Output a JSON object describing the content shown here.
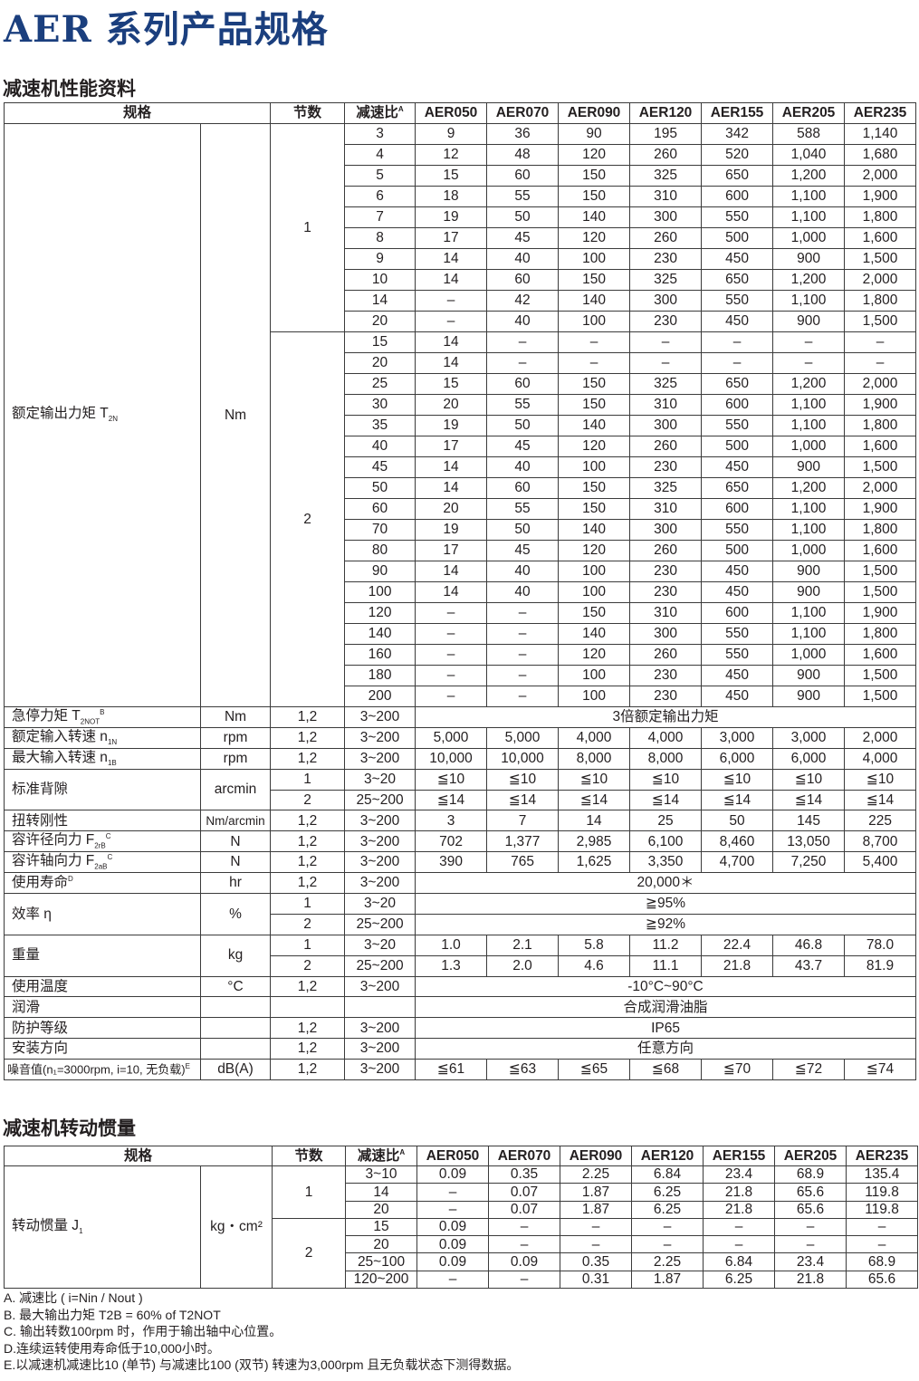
{
  "title": "AER 系列产品规格",
  "perf": {
    "section_title": "减速机性能资料",
    "header": {
      "spec": "规格",
      "stage": "节数",
      "ratio": "减速比",
      "ratio_sup": "A",
      "models": [
        "AER050",
        "AER070",
        "AER090",
        "AER120",
        "AER155",
        "AER205",
        "AER235"
      ]
    },
    "groups": [
      {
        "label": "额定输出力矩 T",
        "sub": "2N",
        "sup": "",
        "unit": "Nm",
        "stages": [
          {
            "stage": "1",
            "rows": [
              {
                "ratio": "3",
                "values": [
                  "9",
                  "36",
                  "90",
                  "195",
                  "342",
                  "588",
                  "1,140"
                ]
              },
              {
                "ratio": "4",
                "values": [
                  "12",
                  "48",
                  "120",
                  "260",
                  "520",
                  "1,040",
                  "1,680"
                ]
              },
              {
                "ratio": "5",
                "values": [
                  "15",
                  "60",
                  "150",
                  "325",
                  "650",
                  "1,200",
                  "2,000"
                ]
              },
              {
                "ratio": "6",
                "values": [
                  "18",
                  "55",
                  "150",
                  "310",
                  "600",
                  "1,100",
                  "1,900"
                ]
              },
              {
                "ratio": "7",
                "values": [
                  "19",
                  "50",
                  "140",
                  "300",
                  "550",
                  "1,100",
                  "1,800"
                ]
              },
              {
                "ratio": "8",
                "values": [
                  "17",
                  "45",
                  "120",
                  "260",
                  "500",
                  "1,000",
                  "1,600"
                ]
              },
              {
                "ratio": "9",
                "values": [
                  "14",
                  "40",
                  "100",
                  "230",
                  "450",
                  "900",
                  "1,500"
                ]
              },
              {
                "ratio": "10",
                "values": [
                  "14",
                  "60",
                  "150",
                  "325",
                  "650",
                  "1,200",
                  "2,000"
                ]
              },
              {
                "ratio": "14",
                "values": [
                  "–",
                  "42",
                  "140",
                  "300",
                  "550",
                  "1,100",
                  "1,800"
                ]
              },
              {
                "ratio": "20",
                "values": [
                  "–",
                  "40",
                  "100",
                  "230",
                  "450",
                  "900",
                  "1,500"
                ]
              }
            ]
          },
          {
            "stage": "2",
            "rows": [
              {
                "ratio": "15",
                "values": [
                  "14",
                  "–",
                  "–",
                  "–",
                  "–",
                  "–",
                  "–"
                ]
              },
              {
                "ratio": "20",
                "values": [
                  "14",
                  "–",
                  "–",
                  "–",
                  "–",
                  "–",
                  "–"
                ]
              },
              {
                "ratio": "25",
                "values": [
                  "15",
                  "60",
                  "150",
                  "325",
                  "650",
                  "1,200",
                  "2,000"
                ]
              },
              {
                "ratio": "30",
                "values": [
                  "20",
                  "55",
                  "150",
                  "310",
                  "600",
                  "1,100",
                  "1,900"
                ]
              },
              {
                "ratio": "35",
                "values": [
                  "19",
                  "50",
                  "140",
                  "300",
                  "550",
                  "1,100",
                  "1,800"
                ]
              },
              {
                "ratio": "40",
                "values": [
                  "17",
                  "45",
                  "120",
                  "260",
                  "500",
                  "1,000",
                  "1,600"
                ]
              },
              {
                "ratio": "45",
                "values": [
                  "14",
                  "40",
                  "100",
                  "230",
                  "450",
                  "900",
                  "1,500"
                ]
              },
              {
                "ratio": "50",
                "values": [
                  "14",
                  "60",
                  "150",
                  "325",
                  "650",
                  "1,200",
                  "2,000"
                ]
              },
              {
                "ratio": "60",
                "values": [
                  "20",
                  "55",
                  "150",
                  "310",
                  "600",
                  "1,100",
                  "1,900"
                ]
              },
              {
                "ratio": "70",
                "values": [
                  "19",
                  "50",
                  "140",
                  "300",
                  "550",
                  "1,100",
                  "1,800"
                ]
              },
              {
                "ratio": "80",
                "values": [
                  "17",
                  "45",
                  "120",
                  "260",
                  "500",
                  "1,000",
                  "1,600"
                ]
              },
              {
                "ratio": "90",
                "values": [
                  "14",
                  "40",
                  "100",
                  "230",
                  "450",
                  "900",
                  "1,500"
                ]
              },
              {
                "ratio": "100",
                "values": [
                  "14",
                  "40",
                  "100",
                  "230",
                  "450",
                  "900",
                  "1,500"
                ]
              },
              {
                "ratio": "120",
                "values": [
                  "–",
                  "–",
                  "150",
                  "310",
                  "600",
                  "1,100",
                  "1,900"
                ]
              },
              {
                "ratio": "140",
                "values": [
                  "–",
                  "–",
                  "140",
                  "300",
                  "550",
                  "1,100",
                  "1,800"
                ]
              },
              {
                "ratio": "160",
                "values": [
                  "–",
                  "–",
                  "120",
                  "260",
                  "550",
                  "1,000",
                  "1,600"
                ]
              },
              {
                "ratio": "180",
                "values": [
                  "–",
                  "–",
                  "100",
                  "230",
                  "450",
                  "900",
                  "1,500"
                ]
              },
              {
                "ratio": "200",
                "values": [
                  "–",
                  "–",
                  "100",
                  "230",
                  "450",
                  "900",
                  "1,500"
                ]
              }
            ]
          }
        ]
      },
      {
        "label": "急停力矩 T",
        "sub": "2NOT",
        "sup": "B",
        "unit": "Nm",
        "stages": [
          {
            "stage": "1,2",
            "rows": [
              {
                "ratio": "3~200",
                "merged": "3倍额定输出力矩"
              }
            ]
          }
        ]
      },
      {
        "label": "额定输入转速 n",
        "sub": "1N",
        "sup": "",
        "unit": "rpm",
        "stages": [
          {
            "stage": "1,2",
            "rows": [
              {
                "ratio": "3~200",
                "values": [
                  "5,000",
                  "5,000",
                  "4,000",
                  "4,000",
                  "3,000",
                  "3,000",
                  "2,000"
                ]
              }
            ]
          }
        ]
      },
      {
        "label": "最大输入转速 n",
        "sub": "1B",
        "sup": "",
        "unit": "rpm",
        "stages": [
          {
            "stage": "1,2",
            "rows": [
              {
                "ratio": "3~200",
                "values": [
                  "10,000",
                  "10,000",
                  "8,000",
                  "8,000",
                  "6,000",
                  "6,000",
                  "4,000"
                ]
              }
            ]
          }
        ]
      },
      {
        "label": "标准背隙",
        "sub": "",
        "sup": "",
        "unit": "arcmin",
        "stages": [
          {
            "stage": "1",
            "rows": [
              {
                "ratio": "3~20",
                "values": [
                  "≦10",
                  "≦10",
                  "≦10",
                  "≦10",
                  "≦10",
                  "≦10",
                  "≦10"
                ]
              }
            ]
          },
          {
            "stage": "2",
            "rows": [
              {
                "ratio": "25~200",
                "values": [
                  "≦14",
                  "≦14",
                  "≦14",
                  "≦14",
                  "≦14",
                  "≦14",
                  "≦14"
                ]
              }
            ]
          }
        ]
      },
      {
        "label": "扭转刚性",
        "sub": "",
        "sup": "",
        "unit": "Nm/arcmin",
        "stages": [
          {
            "stage": "1,2",
            "rows": [
              {
                "ratio": "3~200",
                "values": [
                  "3",
                  "7",
                  "14",
                  "25",
                  "50",
                  "145",
                  "225"
                ]
              }
            ]
          }
        ]
      },
      {
        "label": "容许径向力 F",
        "sub": "2rB",
        "sup": "C",
        "unit": "N",
        "stages": [
          {
            "stage": "1,2",
            "rows": [
              {
                "ratio": "3~200",
                "values": [
                  "702",
                  "1,377",
                  "2,985",
                  "6,100",
                  "8,460",
                  "13,050",
                  "8,700"
                ]
              }
            ]
          }
        ]
      },
      {
        "label": "容许轴向力 F",
        "sub": "2aB",
        "sup": "C",
        "unit": "N",
        "stages": [
          {
            "stage": "1,2",
            "rows": [
              {
                "ratio": "3~200",
                "values": [
                  "390",
                  "765",
                  "1,625",
                  "3,350",
                  "4,700",
                  "7,250",
                  "5,400"
                ]
              }
            ]
          }
        ]
      },
      {
        "label": "使用寿命",
        "sub": "",
        "sup": "D",
        "unit": "hr",
        "stages": [
          {
            "stage": "1,2",
            "rows": [
              {
                "ratio": "3~200",
                "merged": "20,000＊"
              }
            ]
          }
        ]
      },
      {
        "label": "效率 η",
        "sub": "",
        "sup": "",
        "unit": "%",
        "stages": [
          {
            "stage": "1",
            "rows": [
              {
                "ratio": "3~20",
                "merged": "≧95%"
              }
            ]
          },
          {
            "stage": "2",
            "rows": [
              {
                "ratio": "25~200",
                "merged": "≧92%"
              }
            ]
          }
        ]
      },
      {
        "label": "重量",
        "sub": "",
        "sup": "",
        "unit": "kg",
        "stages": [
          {
            "stage": "1",
            "rows": [
              {
                "ratio": "3~20",
                "values": [
                  "1.0",
                  "2.1",
                  "5.8",
                  "11.2",
                  "22.4",
                  "46.8",
                  "78.0"
                ]
              }
            ]
          },
          {
            "stage": "2",
            "rows": [
              {
                "ratio": "25~200",
                "values": [
                  "1.3",
                  "2.0",
                  "4.6",
                  "11.1",
                  "21.8",
                  "43.7",
                  "81.9"
                ]
              }
            ]
          }
        ]
      },
      {
        "label": "使用温度",
        "sub": "",
        "sup": "",
        "unit": "°C",
        "stages": [
          {
            "stage": "1,2",
            "rows": [
              {
                "ratio": "3~200",
                "merged": "-10°C~90°C"
              }
            ]
          }
        ]
      },
      {
        "label": "润滑",
        "sub": "",
        "sup": "",
        "unit": "",
        "stages": [
          {
            "stage": "",
            "rows": [
              {
                "ratio": "",
                "merged": "合成润滑油脂"
              }
            ]
          }
        ]
      },
      {
        "label": "防护等级",
        "sub": "",
        "sup": "",
        "unit": "",
        "stages": [
          {
            "stage": "1,2",
            "rows": [
              {
                "ratio": "3~200",
                "merged": "IP65"
              }
            ]
          }
        ]
      },
      {
        "label": "安装方向",
        "sub": "",
        "sup": "",
        "unit": "",
        "stages": [
          {
            "stage": "1,2",
            "rows": [
              {
                "ratio": "3~200",
                "merged": "任意方向"
              }
            ]
          }
        ]
      },
      {
        "label": "噪音值(n₁=3000rpm, i=10, 无负载)",
        "sub": "",
        "sup": "E",
        "unit": "dB(A)",
        "small": true,
        "stages": [
          {
            "stage": "1,2",
            "rows": [
              {
                "ratio": "3~200",
                "values": [
                  "≦61",
                  "≦63",
                  "≦65",
                  "≦68",
                  "≦70",
                  "≦72",
                  "≦74"
                ]
              }
            ]
          }
        ]
      }
    ]
  },
  "inertia": {
    "section_title": "减速机转动惯量",
    "header": {
      "spec": "规格",
      "stage": "节数",
      "ratio": "减速比",
      "ratio_sup": "A",
      "models": [
        "AER050",
        "AER070",
        "AER090",
        "AER120",
        "AER155",
        "AER205",
        "AER235"
      ]
    },
    "groups": [
      {
        "label": "转动惯量 J",
        "sub": "1",
        "sup": "",
        "unit": "kg・cm²",
        "stages": [
          {
            "stage": "1",
            "rows": [
              {
                "ratio": "3~10",
                "values": [
                  "0.09",
                  "0.35",
                  "2.25",
                  "6.84",
                  "23.4",
                  "68.9",
                  "135.4"
                ]
              },
              {
                "ratio": "14",
                "values": [
                  "–",
                  "0.07",
                  "1.87",
                  "6.25",
                  "21.8",
                  "65.6",
                  "119.8"
                ]
              },
              {
                "ratio": "20",
                "values": [
                  "–",
                  "0.07",
                  "1.87",
                  "6.25",
                  "21.8",
                  "65.6",
                  "119.8"
                ]
              }
            ]
          },
          {
            "stage": "2",
            "rows": [
              {
                "ratio": "15",
                "values": [
                  "0.09",
                  "–",
                  "–",
                  "–",
                  "–",
                  "–",
                  "–"
                ]
              },
              {
                "ratio": "20",
                "values": [
                  "0.09",
                  "–",
                  "–",
                  "–",
                  "–",
                  "–",
                  "–"
                ]
              },
              {
                "ratio": "25~100",
                "values": [
                  "0.09",
                  "0.09",
                  "0.35",
                  "2.25",
                  "6.84",
                  "23.4",
                  "68.9"
                ]
              },
              {
                "ratio": "120~200",
                "values": [
                  "–",
                  "–",
                  "0.31",
                  "1.87",
                  "6.25",
                  "21.8",
                  "65.6"
                ]
              }
            ]
          }
        ]
      }
    ]
  },
  "notes": [
    "A. 减速比 ( i=Nin / Nout )",
    "B. 最大输出力矩 T2B = 60% of  T2NOT",
    "C. 输出转数100rpm 时，作用于输出轴中心位置。",
    "D.连续运转使用寿命低于10,000小时。",
    "E.以减速机减速比10 (单节) 与减速比100 (双节) 转速为3,000rpm 且无负载状态下测得数据。"
  ]
}
